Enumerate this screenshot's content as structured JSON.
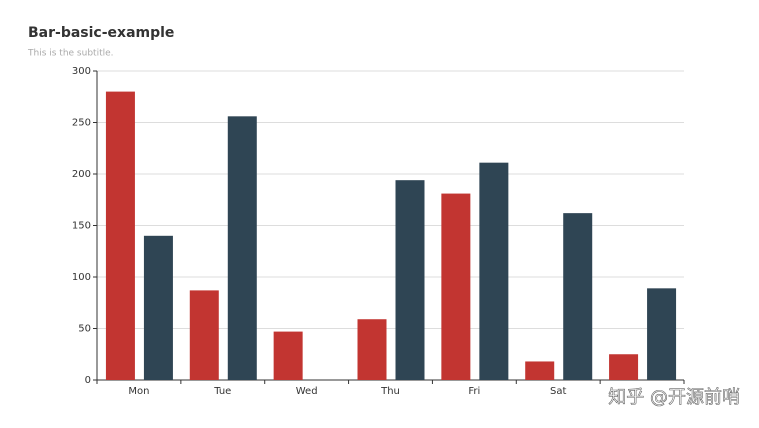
{
  "chart_data": {
    "type": "bar",
    "title": "Bar-basic-example",
    "subtitle": "This is the subtitle.",
    "categories": [
      "Mon",
      "Tue",
      "Wed",
      "Thu",
      "Fri",
      "Sat",
      null
    ],
    "series": [
      {
        "color": "#c23531",
        "values": [
          280,
          87,
          47,
          59,
          181,
          18,
          25
        ]
      },
      {
        "color": "#2f4554",
        "values": [
          140,
          256,
          0,
          194,
          211,
          162,
          89
        ]
      }
    ],
    "ylim": [
      0,
      300
    ],
    "yticks": [
      0,
      50,
      100,
      150,
      200,
      250,
      300
    ],
    "grid": true,
    "watermark": "知乎 @开源前哨"
  }
}
